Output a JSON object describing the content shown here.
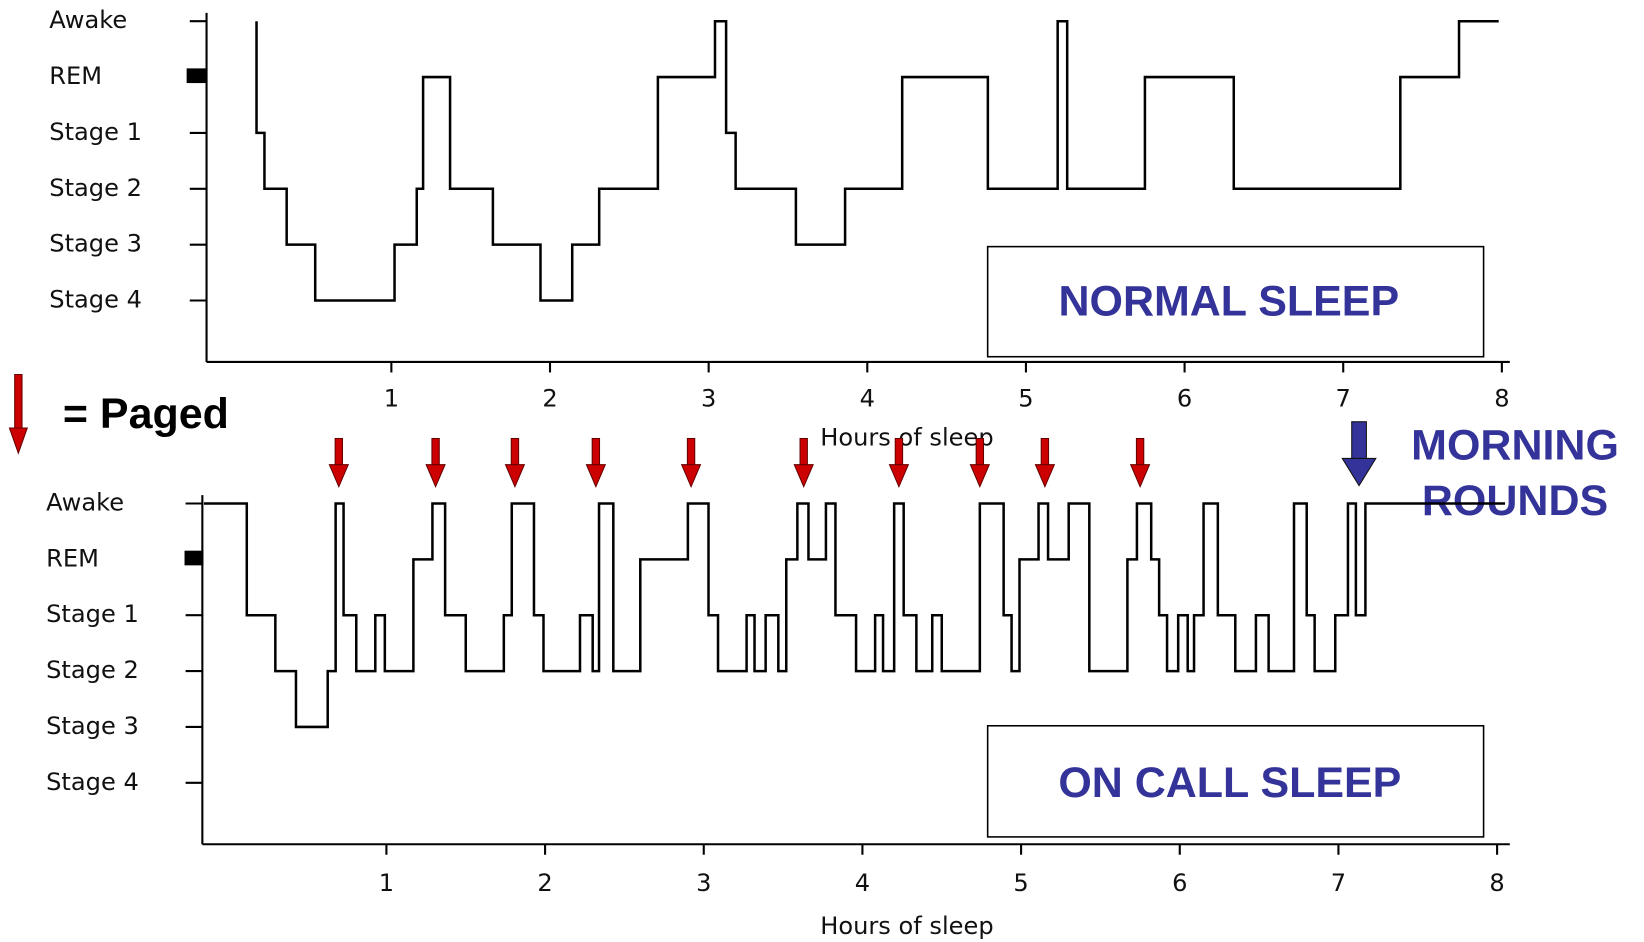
{
  "chart_data": [
    {
      "type": "step",
      "annotation": "NORMAL SLEEP",
      "x_label": "Hours of sleep",
      "color": "#000000",
      "xlim": [
        -0.165,
        8.05
      ],
      "xticks": [
        1,
        2,
        3,
        4,
        5,
        6,
        7,
        8
      ],
      "ylim": [
        -1.1,
        5.15
      ],
      "yticks": [
        {
          "value": 5,
          "label": "Awake"
        },
        {
          "value": 4,
          "label": "REM"
        },
        {
          "value": 3,
          "label": "Stage 1"
        },
        {
          "value": 2,
          "label": "Stage 2"
        },
        {
          "value": 1,
          "label": "Stage 3"
        },
        {
          "value": 0,
          "label": "Stage 4"
        }
      ],
      "x": [
        0.15,
        0.15,
        0.2,
        0.34,
        0.52,
        1.02,
        1.16,
        1.2,
        1.37,
        1.64,
        1.94,
        2.14,
        2.31,
        2.68,
        3.04,
        3.11,
        3.17,
        3.55,
        3.86,
        4.22,
        4.76,
        5.2,
        5.26,
        5.75,
        6.31,
        7.36,
        7.73,
        7.98
      ],
      "values": [
        5,
        3,
        2,
        1,
        0,
        1,
        2,
        4,
        2,
        1,
        0,
        1,
        2,
        4,
        5,
        3,
        2,
        1,
        2,
        4,
        2,
        5,
        2,
        4,
        2,
        4,
        5,
        5
      ]
    },
    {
      "type": "step",
      "annotation": "ON CALL SLEEP",
      "x_label": "Hours of sleep",
      "color": "#000000",
      "xlim": [
        -0.16,
        8.08
      ],
      "xticks": [
        1,
        2,
        3,
        4,
        5,
        6,
        7,
        8
      ],
      "ylim": [
        -1.1,
        5.15
      ],
      "yticks": [
        {
          "value": 5,
          "label": "Awake"
        },
        {
          "value": 4,
          "label": "REM"
        },
        {
          "value": 3,
          "label": "Stage 1"
        },
        {
          "value": 2,
          "label": "Stage 2"
        },
        {
          "value": 1,
          "label": "Stage 3"
        },
        {
          "value": 0,
          "label": "Stage 4"
        }
      ],
      "x": [
        -0.15,
        0.12,
        0.3,
        0.43,
        0.63,
        0.68,
        0.73,
        0.81,
        0.93,
        0.99,
        1.17,
        1.29,
        1.37,
        1.5,
        1.74,
        1.79,
        1.93,
        1.99,
        2.22,
        2.3,
        2.34,
        2.43,
        2.6,
        2.9,
        3.03,
        3.09,
        3.27,
        3.32,
        3.39,
        3.47,
        3.52,
        3.59,
        3.66,
        3.77,
        3.83,
        3.96,
        4.08,
        4.13,
        4.2,
        4.26,
        4.34,
        4.44,
        4.5,
        4.74,
        4.89,
        4.94,
        4.99,
        5.11,
        5.17,
        5.3,
        5.43,
        5.67,
        5.73,
        5.82,
        5.87,
        5.92,
        5.99,
        6.05,
        6.09,
        6.15,
        6.24,
        6.35,
        6.48,
        6.56,
        6.72,
        6.8,
        6.85,
        6.98,
        7.06,
        7.11,
        7.17,
        8.05
      ],
      "values": [
        5,
        3,
        2,
        1,
        2,
        5,
        3,
        2,
        3,
        2,
        4,
        5,
        3,
        2,
        3,
        5,
        3,
        2,
        3,
        2,
        5,
        2,
        4,
        5,
        3,
        2,
        3,
        2,
        3,
        2,
        4,
        5,
        4,
        5,
        3,
        2,
        3,
        2,
        5,
        3,
        2,
        3,
        2,
        5,
        3,
        2,
        4,
        5,
        4,
        5,
        2,
        4,
        5,
        4,
        3,
        2,
        3,
        2,
        3,
        5,
        3,
        2,
        3,
        2,
        5,
        3,
        2,
        3,
        5,
        3,
        5,
        5
      ],
      "paged_label": "= Paged",
      "paged_color": "#cc0000",
      "paged": [
        0.7,
        1.31,
        1.81,
        2.32,
        2.92,
        3.63,
        4.23,
        4.74,
        5.15,
        5.75
      ],
      "morning_rounds": {
        "label": "MORNING ROUNDS",
        "x": 7.13,
        "color": "#333399"
      }
    }
  ]
}
